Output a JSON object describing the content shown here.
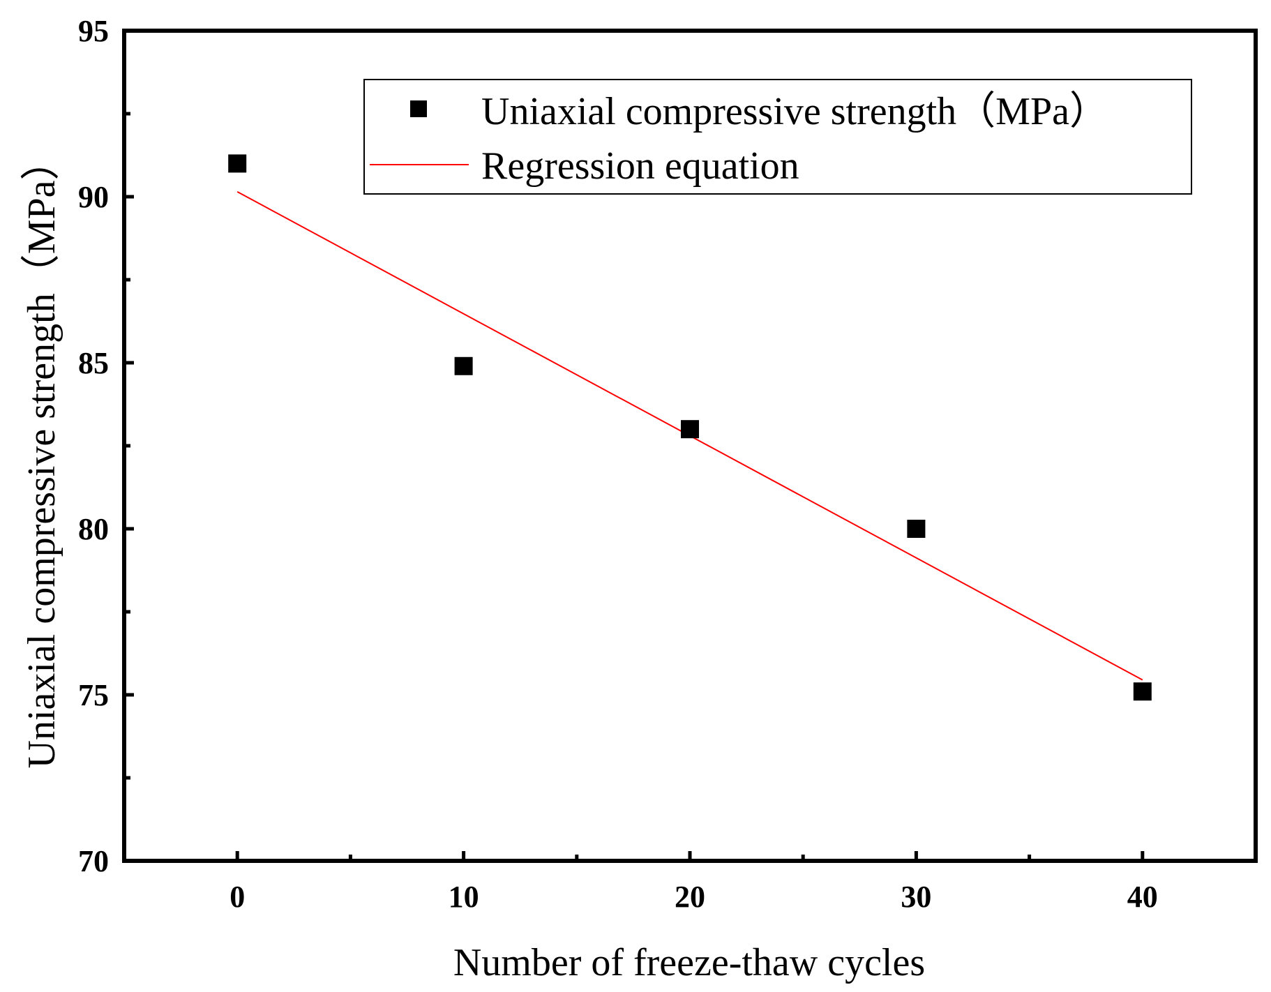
{
  "chart_data": {
    "type": "scatter",
    "title": "",
    "xlabel": "Number of freeze-thaw cycles",
    "ylabel": "Uniaxial compressive strength（MPa）",
    "xlim": [
      -5,
      45
    ],
    "ylim": [
      70,
      95
    ],
    "xticks": [
      0,
      10,
      20,
      30,
      40
    ],
    "yticks": [
      70,
      75,
      80,
      85,
      90,
      95
    ],
    "x_minor_ticks": [
      5,
      15,
      25,
      35
    ],
    "y_minor_ticks": [
      72.5,
      77.5,
      82.5,
      87.5,
      92.5
    ],
    "grid": false,
    "legend_position": "top-right",
    "series": [
      {
        "name": "Uniaxial compressive strength（MPa）",
        "kind": "scatter",
        "marker": "square",
        "color": "#000000",
        "x": [
          0,
          10,
          20,
          30,
          40
        ],
        "y": [
          91.0,
          84.9,
          83.0,
          80.0,
          75.1
        ]
      },
      {
        "name": "Regression equation",
        "kind": "line",
        "color": "#ff0000",
        "x": [
          0,
          40
        ],
        "y": [
          90.15,
          75.45
        ]
      }
    ]
  }
}
